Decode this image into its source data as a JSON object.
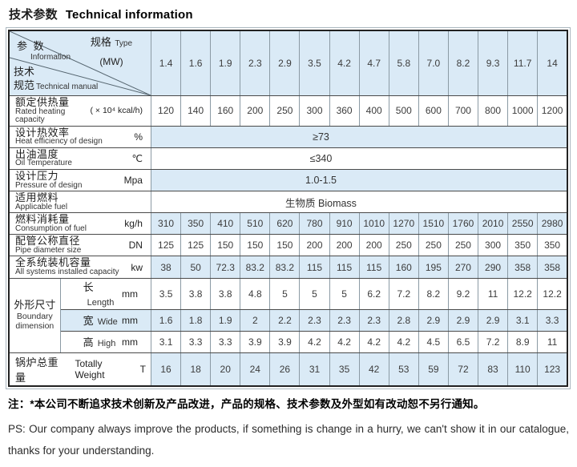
{
  "page_title": {
    "zh": "技术参数",
    "en": "Technical information"
  },
  "table": {
    "corner": {
      "type_zh": "规格",
      "type_en": "Type",
      "type_unit": "(MW)",
      "param_zh": "参 数",
      "param_en": "Information",
      "tech_zh1": "技术",
      "tech_zh2": "规范",
      "tech_en": "Technical manual"
    },
    "columns": [
      "1.4",
      "1.6",
      "1.9",
      "2.3",
      "2.9",
      "3.5",
      "4.2",
      "4.7",
      "5.8",
      "7.0",
      "8.2",
      "9.3",
      "11.7",
      "14"
    ],
    "rows": [
      {
        "zh": "额定供热量",
        "en": "Rated heating capacity",
        "unit": "( × 10⁴ kcal/h)",
        "values": [
          "120",
          "140",
          "160",
          "200",
          "250",
          "300",
          "360",
          "400",
          "500",
          "600",
          "700",
          "800",
          "1000",
          "1200"
        ]
      },
      {
        "zh": "设计热效率",
        "en": "Heat efficiency of design",
        "unit": "%",
        "value": "≥73"
      },
      {
        "zh": "出油温度",
        "en": "Oil Temperature",
        "unit": "℃",
        "value": "≤340"
      },
      {
        "zh": "设计压力",
        "en": "Pressure of design",
        "unit": "Mpa",
        "value": "1.0-1.5"
      },
      {
        "zh": "适用燃料",
        "en": "Applicable fuel",
        "unit": "",
        "value": "生物质  Biomass"
      },
      {
        "zh": "燃料消耗量",
        "en": "Consumption of fuel",
        "unit": "kg/h",
        "values": [
          "310",
          "350",
          "410",
          "510",
          "620",
          "780",
          "910",
          "1010",
          "1270",
          "1510",
          "1760",
          "2010",
          "2550",
          "2980"
        ]
      },
      {
        "zh": "配管公称直径",
        "en": "Pipe diameter size",
        "unit": "DN",
        "values": [
          "125",
          "125",
          "150",
          "150",
          "150",
          "200",
          "200",
          "200",
          "250",
          "250",
          "250",
          "300",
          "350",
          "350"
        ]
      },
      {
        "zh": "全系统装机容量",
        "en": "All systems installed capacity",
        "unit": "kw",
        "values": [
          "38",
          "50",
          "72.3",
          "83.2",
          "83.2",
          "115",
          "115",
          "115",
          "160",
          "195",
          "270",
          "290",
          "358",
          "358"
        ]
      }
    ],
    "boundary": {
      "zh": "外形尺寸",
      "en": "Boundary dimension",
      "subrows": [
        {
          "zh": "长",
          "en": "Length",
          "unit": "mm",
          "values": [
            "3.5",
            "3.8",
            "3.8",
            "4.8",
            "5",
            "5",
            "5",
            "6.2",
            "7.2",
            "8.2",
            "9.2",
            "11",
            "12.2",
            "12.2"
          ]
        },
        {
          "zh": "宽",
          "en": "Wide",
          "unit": "mm",
          "values": [
            "1.6",
            "1.8",
            "1.9",
            "2",
            "2.2",
            "2.3",
            "2.3",
            "2.3",
            "2.8",
            "2.9",
            "2.9",
            "2.9",
            "3.1",
            "3.3"
          ]
        },
        {
          "zh": "高",
          "en": "High",
          "unit": "mm",
          "values": [
            "3.1",
            "3.3",
            "3.3",
            "3.9",
            "3.9",
            "4.2",
            "4.2",
            "4.2",
            "4.2",
            "4.5",
            "6.5",
            "7.2",
            "8.9",
            "11"
          ]
        }
      ]
    },
    "weight": {
      "zh": "锅炉总重量",
      "en": "Totally Weight",
      "unit": "T",
      "values": [
        "16",
        "18",
        "20",
        "24",
        "26",
        "31",
        "35",
        "42",
        "53",
        "59",
        "72",
        "83",
        "110",
        "123"
      ]
    }
  },
  "notes": {
    "zh": "注：*本公司不断追求技术创新及产品改进，产品的规格、技术参数及外型如有改动恕不另行通知。",
    "en": "PS: Our company always improve the products, if something is change in a hurry, we can't show it in our catalogue, thanks for your understanding."
  },
  "colors": {
    "stripe": "#daeaf6",
    "grid": "#8b9aa4",
    "border": "#222222"
  }
}
